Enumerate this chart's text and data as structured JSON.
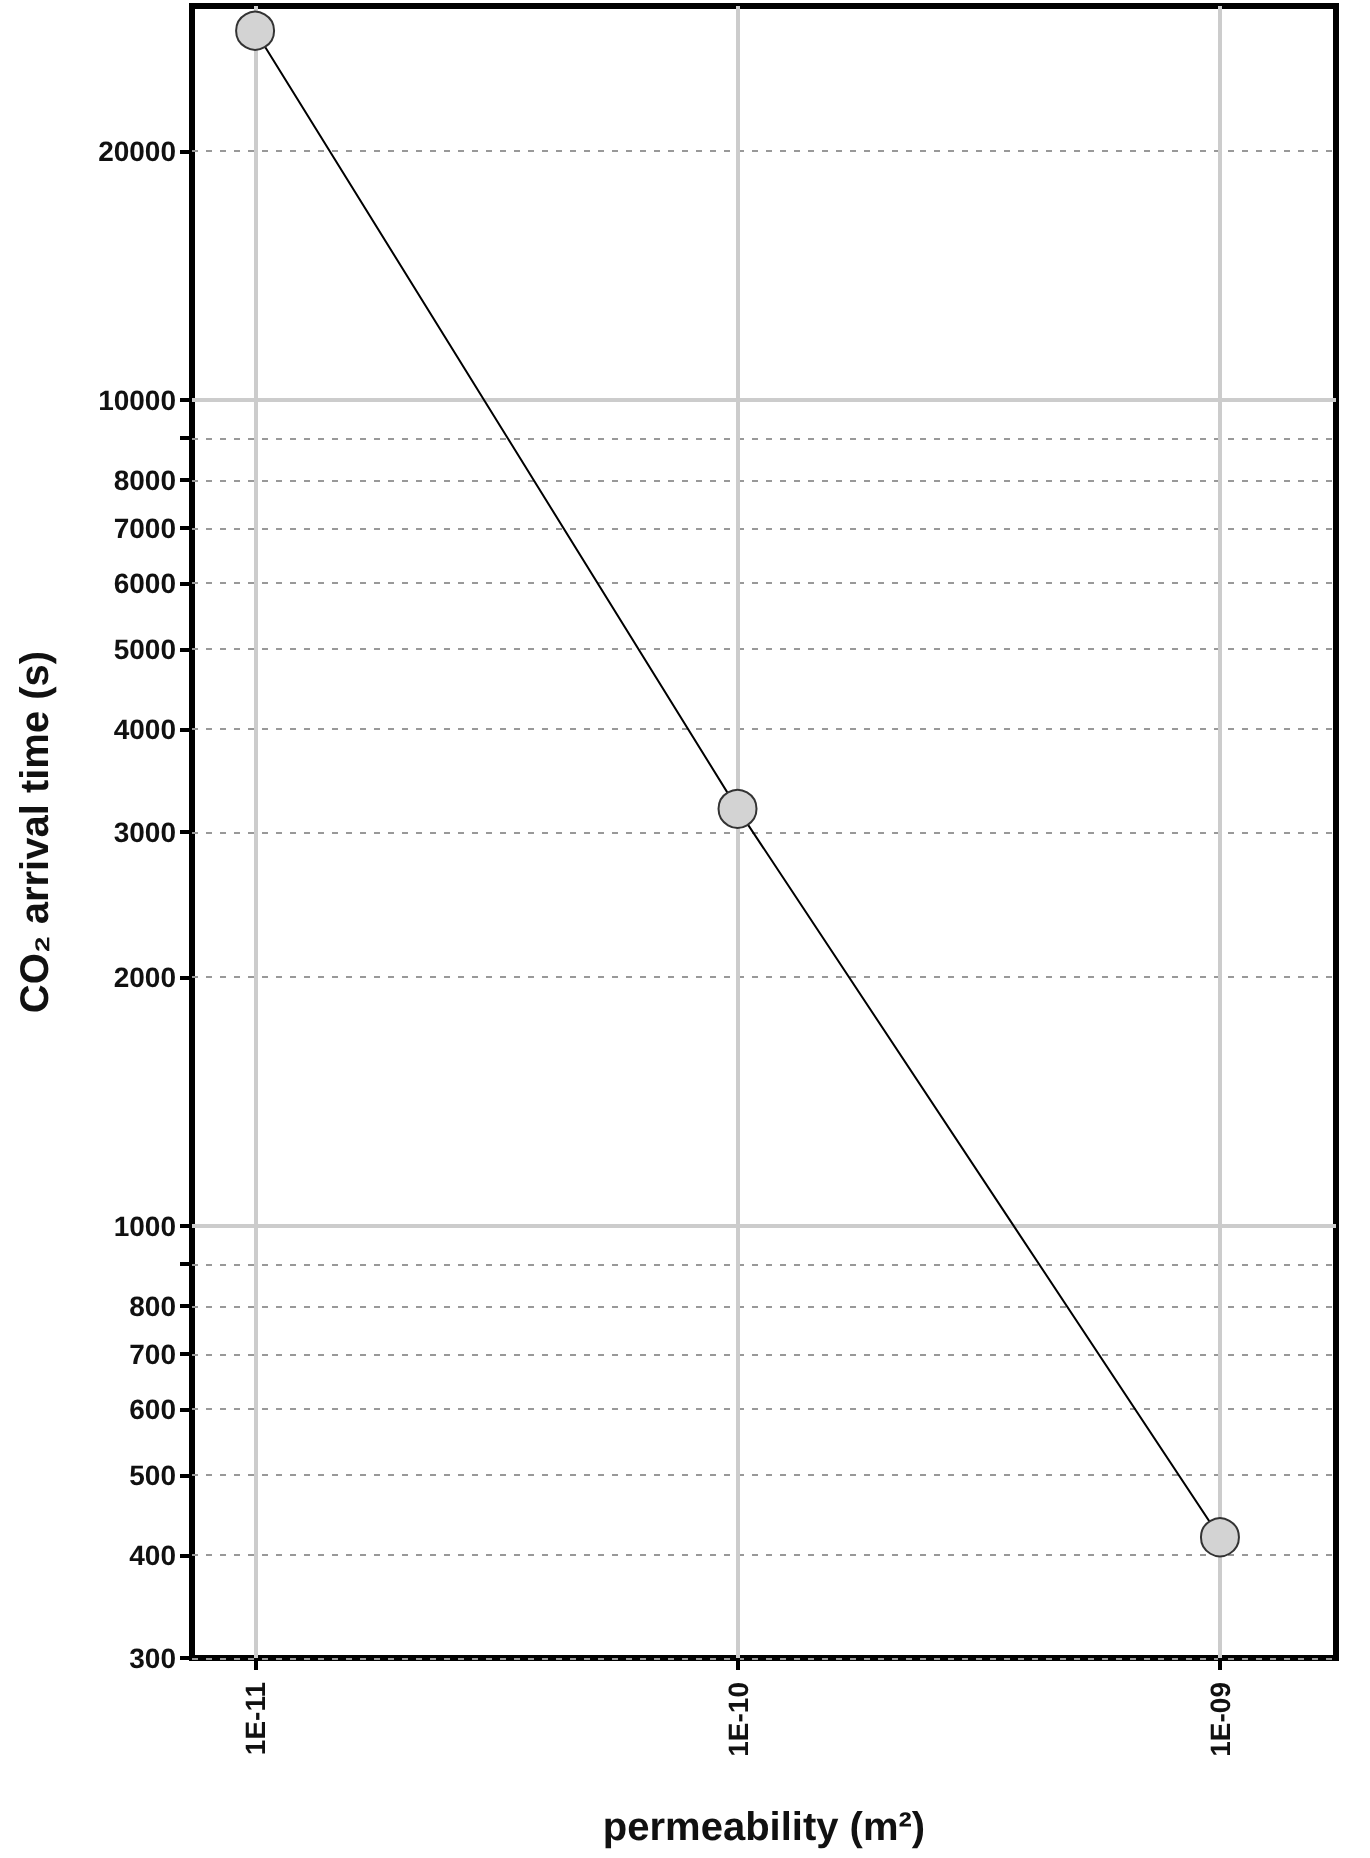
{
  "chart_data": {
    "type": "line",
    "xlabel": "permeability (m²)",
    "ylabel": "CO₂ arrival time (s)",
    "x": [
      1e-11,
      1e-10,
      1e-09
    ],
    "series": [
      {
        "color": "#d3d3d3",
        "values": [
          28000,
          3200,
          420
        ]
      }
    ],
    "log": "xy",
    "marker": "circle",
    "line_style": "solid",
    "grid": true,
    "xlim": [
      7.4e-12,
      1.74e-09
    ],
    "xticks": [
      {
        "value": 1e-11,
        "label": "1E-11"
      },
      {
        "value": 1e-10,
        "label": "1E-10"
      },
      {
        "value": 1e-09,
        "label": "1E-09"
      }
    ],
    "ylim": [
      300,
      30000
    ],
    "yticks": [
      300,
      400,
      500,
      600,
      700,
      800,
      {
        "value": 900,
        "label": null
      },
      1000,
      2000,
      3000,
      4000,
      5000,
      6000,
      7000,
      8000,
      {
        "value": 9000,
        "label": null
      },
      10000,
      20000
    ]
  }
}
